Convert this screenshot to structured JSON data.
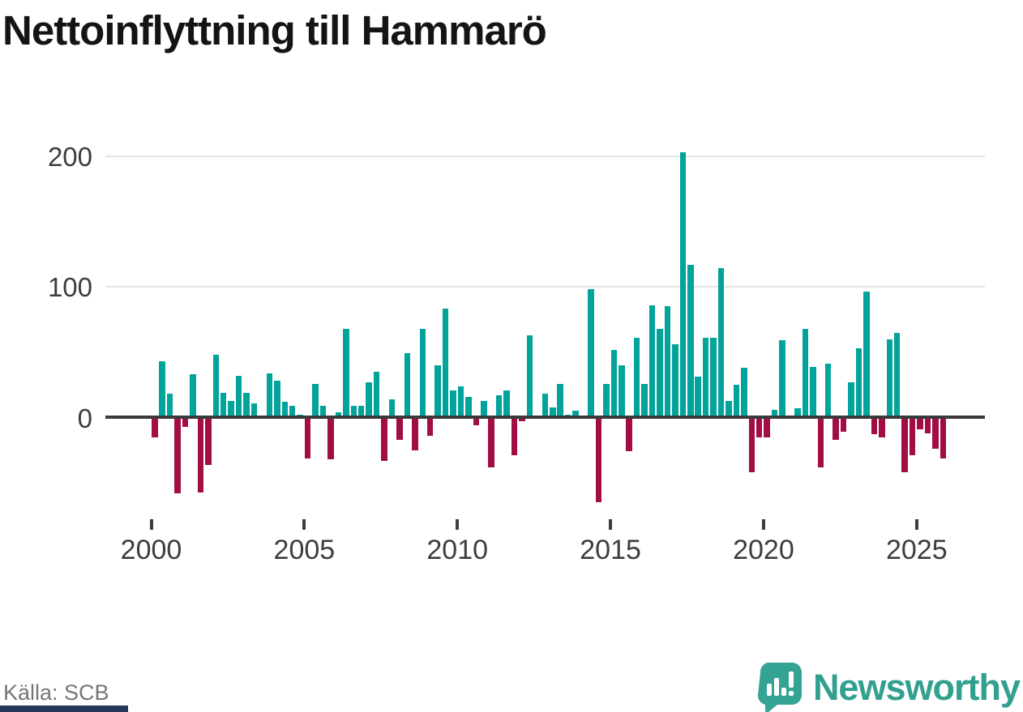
{
  "title": "Nettoinflyttning till Hammarö",
  "source": "Källa: SCB",
  "branding": {
    "wordmark": "Newsworthy",
    "icon": "newsworthy-speech-bubble-barchart-icon",
    "brand_color": "#31a08f"
  },
  "colors": {
    "positive_bar": "#02a39a",
    "negative_bar": "#a30d45",
    "gridline": "#e4e4e4",
    "zero_axis": "#3a3a3a",
    "axis_text": "#3d3d3d",
    "title_text": "#141414",
    "source_text": "#767676",
    "footer_strip": "#26395a"
  },
  "chart_data": {
    "type": "bar",
    "title": "Nettoinflyttning till Hammarö",
    "frequency": "quarterly",
    "x_tick_labels": [
      "2000",
      "2005",
      "2010",
      "2015",
      "2020",
      "2025"
    ],
    "y_tick_labels": [
      "0",
      "100",
      "200"
    ],
    "ylim": [
      -75,
      215
    ],
    "grid": "horizontal",
    "legend": "none",
    "years": [
      {
        "year": 2000,
        "values": [
          -15,
          43,
          18,
          -58
        ]
      },
      {
        "year": 2001,
        "values": [
          -7,
          33,
          -57,
          -36
        ]
      },
      {
        "year": 2002,
        "values": [
          48,
          19,
          13,
          32
        ]
      },
      {
        "year": 2003,
        "values": [
          19,
          11,
          0,
          34
        ]
      },
      {
        "year": 2004,
        "values": [
          28,
          12,
          9,
          2
        ]
      },
      {
        "year": 2005,
        "values": [
          -31,
          26,
          9,
          -32
        ]
      },
      {
        "year": 2006,
        "values": [
          4,
          68,
          9,
          9
        ]
      },
      {
        "year": 2007,
        "values": [
          27,
          35,
          -33,
          14
        ]
      },
      {
        "year": 2008,
        "values": [
          -17,
          49,
          -25,
          68
        ]
      },
      {
        "year": 2009,
        "values": [
          -14,
          40,
          83,
          21
        ]
      },
      {
        "year": 2010,
        "values": [
          24,
          16,
          -6,
          13
        ]
      },
      {
        "year": 2011,
        "values": [
          -38,
          17,
          21,
          -29
        ]
      },
      {
        "year": 2012,
        "values": [
          -3,
          63,
          0,
          18
        ]
      },
      {
        "year": 2013,
        "values": [
          8,
          26,
          2,
          5
        ]
      },
      {
        "year": 2014,
        "values": [
          0,
          98,
          -65,
          26
        ]
      },
      {
        "year": 2015,
        "values": [
          52,
          40,
          -26,
          61
        ]
      },
      {
        "year": 2016,
        "values": [
          26,
          86,
          68,
          85
        ]
      },
      {
        "year": 2017,
        "values": [
          56,
          203,
          117,
          31
        ]
      },
      {
        "year": 2018,
        "values": [
          61,
          61,
          114,
          13
        ]
      },
      {
        "year": 2019,
        "values": [
          25,
          38,
          -42,
          -15
        ]
      },
      {
        "year": 2020,
        "values": [
          -15,
          6,
          59,
          0
        ]
      },
      {
        "year": 2021,
        "values": [
          7,
          68,
          39,
          -38
        ]
      },
      {
        "year": 2022,
        "values": [
          41,
          -17,
          -11,
          27
        ]
      },
      {
        "year": 2023,
        "values": [
          53,
          96,
          -13,
          -15
        ]
      },
      {
        "year": 2024,
        "values": [
          60,
          65,
          -42,
          -29
        ]
      },
      {
        "year": 2025,
        "values": [
          -9,
          -12,
          -24,
          -31
        ]
      }
    ]
  }
}
